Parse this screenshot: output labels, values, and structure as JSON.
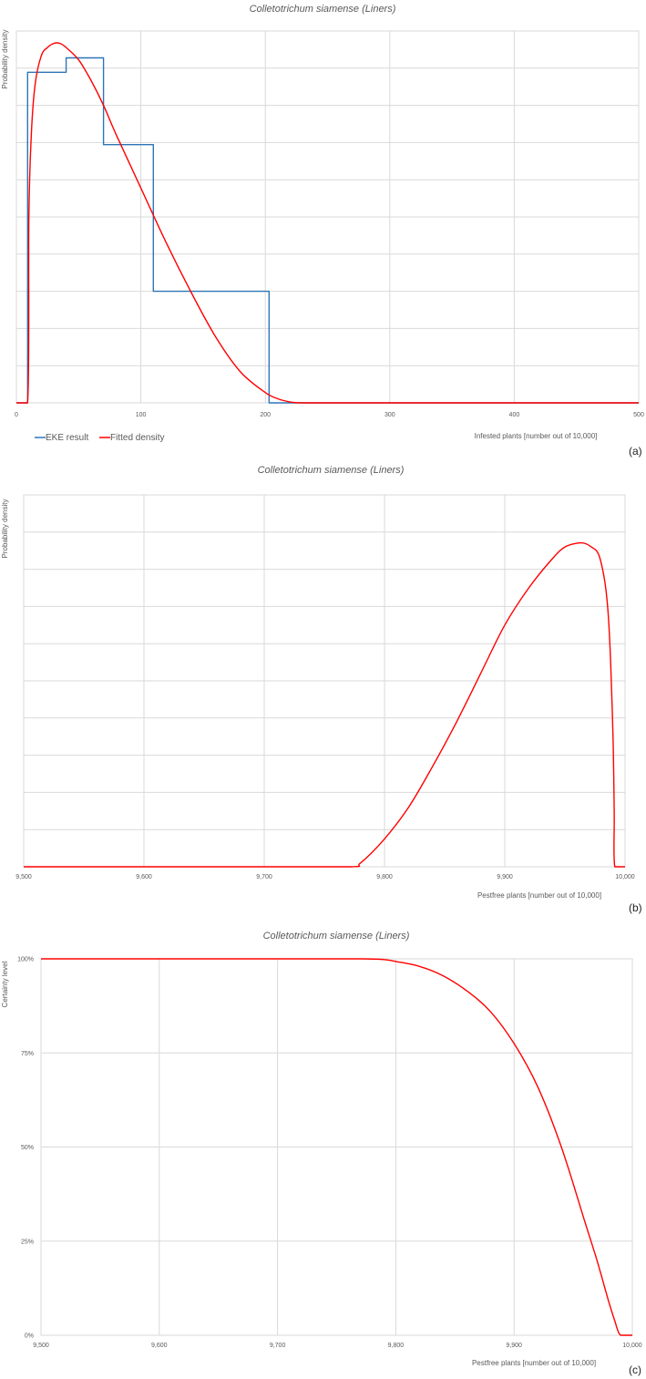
{
  "colors": {
    "eke": "#2e75b6",
    "fitted": "#ff0000",
    "grid": "#d9d9d9",
    "text": "#595959"
  },
  "chart_data": [
    {
      "panel": "(a)",
      "type": "line",
      "title": "Colletotrichum siamense (Liners)",
      "xlabel": "Infested plants [number out of 10,000]",
      "ylabel": "Probability density",
      "xlim": [
        0,
        500
      ],
      "ylim": [
        0,
        0.009
      ],
      "x_ticks": [
        "0",
        "100",
        "200",
        "300",
        "400",
        "500"
      ],
      "grid": true,
      "legend": {
        "position": "bottom-left",
        "entries": [
          "EKE result",
          "Fitted density"
        ]
      },
      "series": [
        {
          "name": "EKE result",
          "style": "step",
          "x": [
            0,
            9,
            9,
            40,
            40,
            70,
            70,
            110,
            110,
            203,
            203,
            500
          ],
          "y": [
            0,
            0,
            0.008,
            0.008,
            0.00835,
            0.00835,
            0.00625,
            0.00625,
            0.0027,
            0.0027,
            0,
            0
          ]
        },
        {
          "name": "Fitted density",
          "style": "line",
          "x": [
            0,
            9,
            10,
            12,
            15,
            20,
            25,
            30,
            35,
            40,
            50,
            60,
            70,
            80,
            100,
            120,
            140,
            160,
            180,
            200,
            210,
            220,
            228,
            240,
            300,
            400,
            500
          ],
          "y": [
            0,
            0,
            0.0045,
            0.0065,
            0.0077,
            0.0084,
            0.0086,
            0.0087,
            0.0087,
            0.0086,
            0.0083,
            0.0078,
            0.0072,
            0.0065,
            0.0052,
            0.0039,
            0.0027,
            0.0016,
            0.00075,
            0.00025,
            0.0001,
            2e-05,
            0,
            0,
            0,
            0,
            0
          ]
        }
      ]
    },
    {
      "panel": "(b)",
      "type": "line",
      "title": "Colletotrichum siamense (Liners)",
      "xlabel": "Pestfree plants [number out of 10,000]",
      "ylabel": "Probability density",
      "xlim": [
        9500,
        10000
      ],
      "ylim": [
        0,
        0.01
      ],
      "x_ticks": [
        "9,500",
        "9,600",
        "9,700",
        "9,800",
        "9,900",
        "10,000"
      ],
      "grid": true,
      "series": [
        {
          "name": "Fitted density",
          "style": "line",
          "x": [
            9500,
            9600,
            9700,
            9772,
            9780,
            9800,
            9820,
            9840,
            9860,
            9880,
            9900,
            9920,
            9940,
            9950,
            9960,
            9966,
            9972,
            9978,
            9983,
            9986,
            9988,
            9990,
            9991,
            9991.5,
            10000
          ],
          "y": [
            0,
            0,
            0,
            0,
            0.0001,
            0.00075,
            0.0016,
            0.0027,
            0.0039,
            0.0052,
            0.0065,
            0.0075,
            0.0083,
            0.0086,
            0.0087,
            0.0087,
            0.0086,
            0.0084,
            0.0077,
            0.0068,
            0.0055,
            0.0035,
            0.0015,
            0,
            0
          ]
        }
      ]
    },
    {
      "panel": "(c)",
      "type": "line",
      "title": "Colletotrichum siamense (Liners)",
      "xlabel": "Pestfree plants [number out of 10,000]",
      "ylabel": "Certainty level",
      "xlim": [
        9500,
        10000
      ],
      "ylim": [
        0,
        1
      ],
      "x_ticks": [
        "9,500",
        "9,600",
        "9,700",
        "9,800",
        "9,900",
        "10,000"
      ],
      "y_ticks": [
        "0%",
        "25%",
        "50%",
        "75%",
        "100%"
      ],
      "grid": true,
      "series": [
        {
          "name": "Fitted density",
          "style": "line",
          "x": [
            9500,
            9600,
            9700,
            9770,
            9790,
            9800,
            9820,
            9840,
            9860,
            9880,
            9900,
            9920,
            9940,
            9960,
            9970,
            9980,
            9985,
            9990,
            10000
          ],
          "y": [
            1,
            1,
            1,
            1,
            0.998,
            0.993,
            0.98,
            0.955,
            0.915,
            0.86,
            0.775,
            0.66,
            0.5,
            0.3,
            0.2,
            0.09,
            0.04,
            0,
            0
          ]
        }
      ]
    }
  ]
}
